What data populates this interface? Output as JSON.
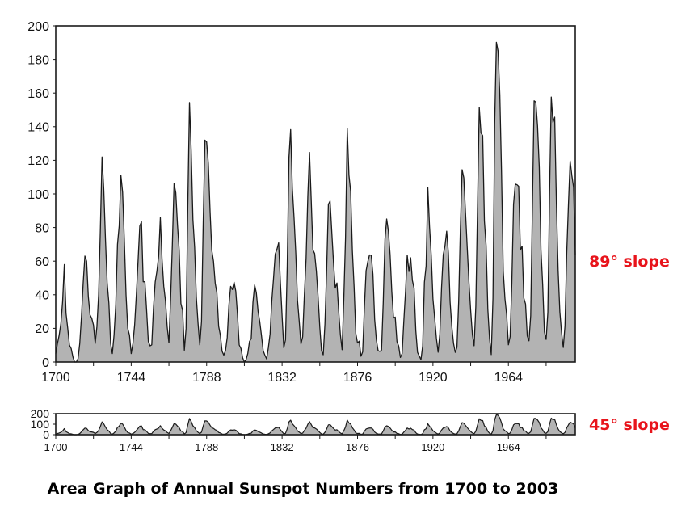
{
  "title": "Area Graph of Annual Sunspot Numbers from 1700 to 2003",
  "colors": {
    "fill": "#b3b3b3",
    "line": "#1a1a1a",
    "annotation": "#e8141b"
  },
  "chart_data": [
    {
      "type": "area",
      "annotation": "89° slope",
      "xlim": [
        1700,
        2003
      ],
      "ylim": [
        0,
        200
      ],
      "xticks": [
        1700,
        1744,
        1788,
        1832,
        1876,
        1920,
        1964
      ],
      "yticks": [
        0,
        20,
        40,
        60,
        80,
        100,
        120,
        140,
        160,
        180,
        200
      ],
      "grid": false
    },
    {
      "type": "area",
      "annotation": "45° slope",
      "xlim": [
        1700,
        2003
      ],
      "ylim": [
        0,
        200
      ],
      "xticks": [
        1700,
        1744,
        1788,
        1832,
        1876,
        1920,
        1964
      ],
      "yticks": [
        0,
        100,
        200
      ],
      "grid": false
    }
  ],
  "series": {
    "start_year": 1700,
    "values": [
      5,
      11,
      16,
      23,
      36,
      58,
      29,
      20,
      10,
      8,
      3,
      0,
      0,
      2,
      11,
      27,
      47,
      63,
      60,
      39,
      28,
      26,
      22,
      11,
      21,
      40,
      78,
      122,
      103,
      73,
      47,
      35,
      11,
      5,
      16,
      34,
      70,
      81,
      111,
      101,
      73,
      40,
      20,
      16,
      5,
      11,
      22,
      40,
      60,
      80.9,
      83.4,
      47.7,
      47.8,
      30.7,
      12.2,
      9.6,
      10.2,
      32.4,
      47.6,
      54,
      62.9,
      85.9,
      61.2,
      45.1,
      36.4,
      20.9,
      11.4,
      37.8,
      69.8,
      106.1,
      100.8,
      81.6,
      66.5,
      34.8,
      30.6,
      7,
      19.8,
      92.5,
      154.4,
      125.9,
      84.8,
      68.1,
      38.5,
      22.8,
      10.2,
      24.1,
      82.9,
      132,
      130.9,
      118.1,
      89.9,
      66.6,
      60,
      46.9,
      41,
      21.3,
      16,
      6.4,
      4.1,
      6.8,
      14.5,
      34,
      45,
      43.1,
      47.5,
      42.2,
      28.1,
      10.1,
      8.1,
      2.5,
      0,
      1.4,
      5,
      12.2,
      13.9,
      35.4,
      45.8,
      41.1,
      30.1,
      23.9,
      15.6,
      6.6,
      4,
      1.8,
      8.5,
      16.6,
      36.3,
      49.6,
      64.2,
      67,
      70.9,
      47.8,
      27.5,
      8.5,
      13.2,
      56.9,
      121.5,
      138.3,
      103.2,
      85.7,
      64.6,
      36.7,
      24.2,
      10.7,
      15,
      40.1,
      61.5,
      98.5,
      124.7,
      96.3,
      66.6,
      64.5,
      54.1,
      39,
      20.6,
      6.7,
      4.3,
      22.7,
      54.8,
      93.8,
      95.8,
      77.2,
      59.1,
      44,
      47,
      30.5,
      16.3,
      7.3,
      37.6,
      74,
      139,
      111.2,
      101.6,
      66.2,
      44.7,
      17,
      11.3,
      12.4,
      3.4,
      6,
      32.3,
      54.3,
      59.7,
      63.7,
      63.5,
      52.2,
      25.4,
      13.1,
      6.8,
      6.3,
      7.1,
      35.6,
      73,
      85.1,
      78,
      64,
      41.8,
      26.2,
      26.7,
      12.1,
      9.5,
      2.7,
      5,
      24.4,
      42,
      63.5,
      53.8,
      62,
      48.5,
      43.9,
      18.6,
      5.7,
      3.6,
      1.4,
      9.6,
      47.4,
      57.1,
      103.9,
      80.6,
      63.6,
      37.6,
      26.1,
      14.2,
      5.8,
      16.7,
      44.3,
      63.9,
      69,
      77.8,
      64.9,
      35.7,
      21.2,
      11.1,
      5.7,
      8.7,
      36.1,
      79.7,
      114.4,
      109.6,
      88.8,
      67.8,
      47.5,
      30.6,
      16.3,
      9.6,
      33.2,
      92.6,
      151.6,
      136.3,
      134.7,
      83.9,
      69.4,
      31.5,
      13.9,
      4.4,
      38,
      141.7,
      190.2,
      184.8,
      159,
      112.3,
      53.9,
      37.6,
      27.9,
      10.2,
      15.1,
      47,
      93.8,
      105.9,
      105.5,
      104.5,
      66.6,
      68.9,
      38,
      34.5,
      15.5,
      12.6,
      27.5,
      92.5,
      155.4,
      154.6,
      140.4,
      115.9,
      66.6,
      45.9,
      17.9,
      13.4,
      29.4,
      100.2,
      157.6,
      142.6,
      145.7,
      94.3,
      54.6,
      29.9,
      17.5,
      8.6,
      21.5,
      64.3,
      93.3,
      119.6,
      111,
      104,
      63.7
    ]
  }
}
